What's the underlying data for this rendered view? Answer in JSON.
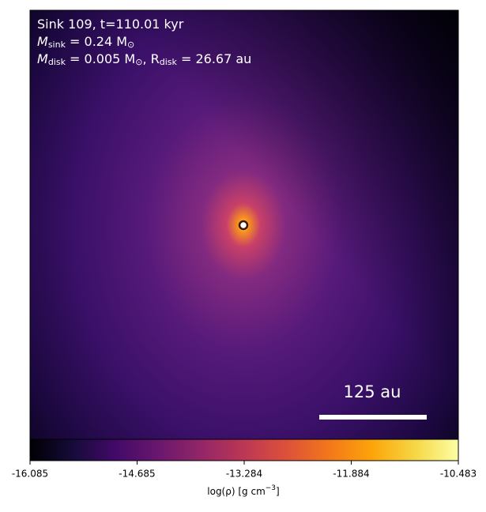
{
  "chart_data": {
    "type": "density-map",
    "annotations": [
      [
        "Sink 109, t=110.01 kyr"
      ],
      [
        "M",
        "sink",
        " = 0.24 M",
        "⊙"
      ],
      [
        "M",
        "disk",
        " = 0.005 M",
        "⊙",
        ", R",
        "disk",
        " = 26.67 au"
      ]
    ],
    "scale_bar_label": "125 au",
    "colormap": "inferno",
    "clim": [
      -16.085,
      -10.483
    ],
    "cticks": [
      -16.085,
      -14.685,
      -13.284,
      -11.884,
      -10.483
    ],
    "colorbar_label": [
      "log(ρ) [g cm",
      "−3",
      "]"
    ]
  }
}
